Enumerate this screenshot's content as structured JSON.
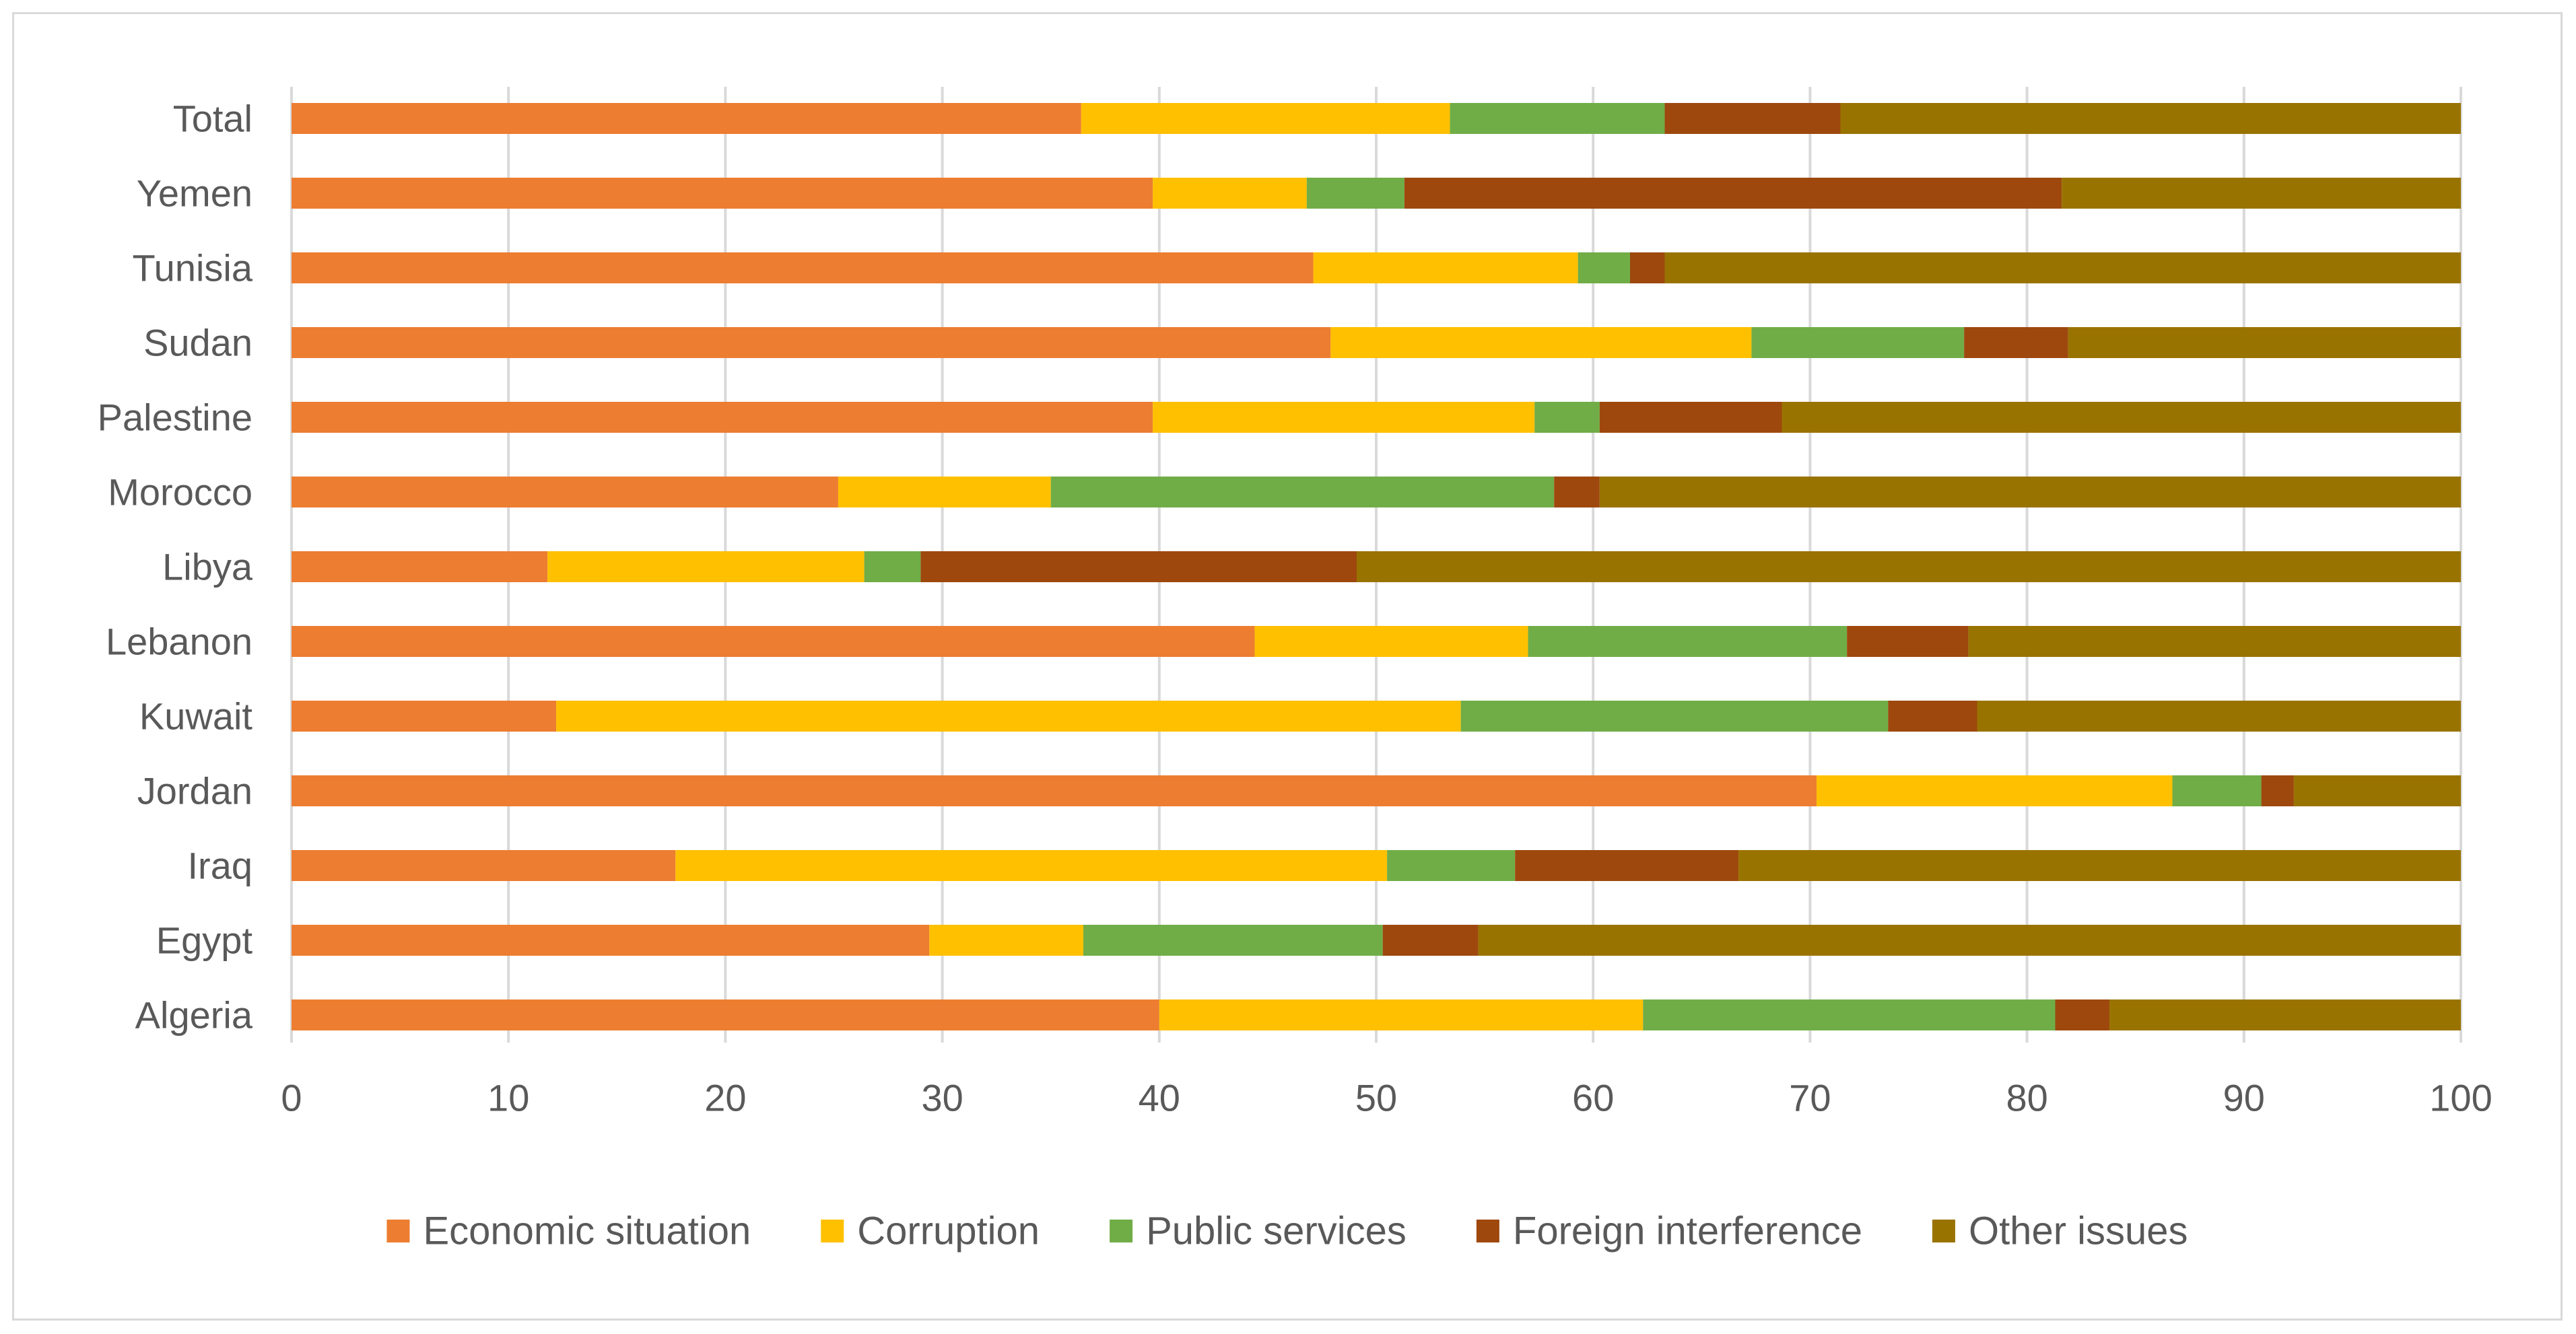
{
  "chart_data": {
    "type": "bar",
    "orientation": "horizontal",
    "stacked": true,
    "title": "",
    "xlabel": "",
    "ylabel": "",
    "xlim": [
      0,
      100
    ],
    "x_ticks": [
      0,
      10,
      20,
      30,
      40,
      50,
      60,
      70,
      80,
      90,
      100
    ],
    "grid": "vertical",
    "legend_position": "bottom",
    "categories": [
      "Total",
      "Yemen",
      "Tunisia",
      "Sudan",
      "Palestine",
      "Morocco",
      "Libya",
      "Lebanon",
      "Kuwait",
      "Jordan",
      "Iraq",
      "Egypt",
      "Algeria"
    ],
    "series": [
      {
        "name": "Economic situation",
        "color": "#ed7d31",
        "values": [
          36.4,
          39.7,
          47.1,
          47.9,
          39.7,
          25.2,
          11.8,
          44.4,
          12.2,
          70.3,
          17.7,
          29.4,
          40.0
        ]
      },
      {
        "name": "Corruption",
        "color": "#ffc000",
        "values": [
          17.0,
          7.1,
          12.2,
          19.4,
          17.6,
          9.8,
          14.6,
          12.6,
          41.7,
          16.4,
          32.8,
          7.1,
          22.3
        ]
      },
      {
        "name": "Public services",
        "color": "#70ad47",
        "values": [
          9.9,
          4.5,
          2.4,
          9.8,
          3.0,
          23.2,
          2.6,
          14.7,
          19.7,
          4.1,
          5.9,
          13.8,
          19.0
        ]
      },
      {
        "name": "Foreign interference",
        "color": "#9e480e",
        "values": [
          8.1,
          30.3,
          1.6,
          4.8,
          8.4,
          2.1,
          20.1,
          5.6,
          4.1,
          1.5,
          10.3,
          4.4,
          2.5
        ]
      },
      {
        "name": "Other issues",
        "color": "#997300",
        "values": [
          28.6,
          18.4,
          36.7,
          18.1,
          31.3,
          39.7,
          50.9,
          22.7,
          22.3,
          7.7,
          33.3,
          45.3,
          16.2
        ]
      }
    ]
  }
}
